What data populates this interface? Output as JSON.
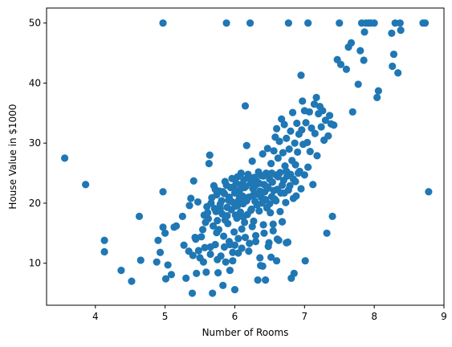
{
  "chart_data": {
    "type": "scatter",
    "title": "",
    "xlabel": "Number of Rooms",
    "ylabel": "House Value in $1000",
    "xlim": [
      3.3,
      9.0
    ],
    "ylim": [
      3.0,
      52.5
    ],
    "x_ticks": [
      4,
      5,
      6,
      7,
      8,
      9
    ],
    "y_ticks": [
      10,
      20,
      30,
      40,
      50
    ],
    "grid": false,
    "color": "#1f77b4",
    "series": [
      {
        "points": [
          [
            3.56,
            27.5
          ],
          [
            3.86,
            23.1
          ],
          [
            4.13,
            13.8
          ],
          [
            4.13,
            11.9
          ],
          [
            4.37,
            8.8
          ],
          [
            4.52,
            7.0
          ],
          [
            4.63,
            17.8
          ],
          [
            4.65,
            10.5
          ],
          [
            4.88,
            10.2
          ],
          [
            4.9,
            13.8
          ],
          [
            4.93,
            11.8
          ],
          [
            4.97,
            16.0
          ],
          [
            4.97,
            21.9
          ],
          [
            4.97,
            50.0
          ],
          [
            5.0,
            15.0
          ],
          [
            5.01,
            7.4
          ],
          [
            5.04,
            9.7
          ],
          [
            5.09,
            8.1
          ],
          [
            5.13,
            16.0
          ],
          [
            5.16,
            16.2
          ],
          [
            5.25,
            17.8
          ],
          [
            5.27,
            13.0
          ],
          [
            5.3,
            7.5
          ],
          [
            5.34,
            12.0
          ],
          [
            5.35,
            19.6
          ],
          [
            5.37,
            20.8
          ],
          [
            5.39,
            5.0
          ],
          [
            5.41,
            23.7
          ],
          [
            5.43,
            14.3
          ],
          [
            5.45,
            8.3
          ],
          [
            5.47,
            20.2
          ],
          [
            5.5,
            10.9
          ],
          [
            5.52,
            14.4
          ],
          [
            5.54,
            15.6
          ],
          [
            5.56,
            18.0
          ],
          [
            5.57,
            12.6
          ],
          [
            5.59,
            8.5
          ],
          [
            5.6,
            19.4
          ],
          [
            5.62,
            17.4
          ],
          [
            5.63,
            26.6
          ],
          [
            5.64,
            28.0
          ],
          [
            5.65,
            12.7
          ],
          [
            5.66,
            20.0
          ],
          [
            5.68,
            5.0
          ],
          [
            5.69,
            16.2
          ],
          [
            5.7,
            22.9
          ],
          [
            5.71,
            19.1
          ],
          [
            5.72,
            13.1
          ],
          [
            5.73,
            18.6
          ],
          [
            5.74,
            21.4
          ],
          [
            5.75,
            17.1
          ],
          [
            5.76,
            8.4
          ],
          [
            5.77,
            15.6
          ],
          [
            5.78,
            22.0
          ],
          [
            5.79,
            19.8
          ],
          [
            5.8,
            11.2
          ],
          [
            5.81,
            20.4
          ],
          [
            5.82,
            18.2
          ],
          [
            5.83,
            6.3
          ],
          [
            5.84,
            14.5
          ],
          [
            5.85,
            21.6
          ],
          [
            5.86,
            17.2
          ],
          [
            5.87,
            10.2
          ],
          [
            5.88,
            23.0
          ],
          [
            5.88,
            50.0
          ],
          [
            5.89,
            19.3
          ],
          [
            5.9,
            16.6
          ],
          [
            5.91,
            20.5
          ],
          [
            5.92,
            13.6
          ],
          [
            5.93,
            8.8
          ],
          [
            5.94,
            22.6
          ],
          [
            5.95,
            18.9
          ],
          [
            5.96,
            24.1
          ],
          [
            5.97,
            11.8
          ],
          [
            5.98,
            20.1
          ],
          [
            5.99,
            15.2
          ],
          [
            6.0,
            21.7
          ],
          [
            6.0,
            5.6
          ],
          [
            6.01,
            19.5
          ],
          [
            6.02,
            23.3
          ],
          [
            6.03,
            17.5
          ],
          [
            6.04,
            24.4
          ],
          [
            6.05,
            14.1
          ],
          [
            6.06,
            20.6
          ],
          [
            6.07,
            22.2
          ],
          [
            6.08,
            18.5
          ],
          [
            6.09,
            25.0
          ],
          [
            6.1,
            12.5
          ],
          [
            6.11,
            21.2
          ],
          [
            6.12,
            19.9
          ],
          [
            6.13,
            23.9
          ],
          [
            6.14,
            16.8
          ],
          [
            6.15,
            20.9
          ],
          [
            6.15,
            36.2
          ],
          [
            6.16,
            22.8
          ],
          [
            6.17,
            29.6
          ],
          [
            6.18,
            18.1
          ],
          [
            6.19,
            24.8
          ],
          [
            6.2,
            21.0
          ],
          [
            6.21,
            13.3
          ],
          [
            6.22,
            50.0
          ],
          [
            6.23,
            23.4
          ],
          [
            6.24,
            19.0
          ],
          [
            6.25,
            27.0
          ],
          [
            6.26,
            22.4
          ],
          [
            6.27,
            17.0
          ],
          [
            6.28,
            24.3
          ],
          [
            6.29,
            20.3
          ],
          [
            6.3,
            14.6
          ],
          [
            6.31,
            23.7
          ],
          [
            6.32,
            21.5
          ],
          [
            6.33,
            7.2
          ],
          [
            6.34,
            25.2
          ],
          [
            6.35,
            18.7
          ],
          [
            6.36,
            22.0
          ],
          [
            6.37,
            9.6
          ],
          [
            6.38,
            24.6
          ],
          [
            6.39,
            20.0
          ],
          [
            6.4,
            28.2
          ],
          [
            6.41,
            16.4
          ],
          [
            6.42,
            23.1
          ],
          [
            6.43,
            21.9
          ],
          [
            6.44,
            7.2
          ],
          [
            6.45,
            25.0
          ],
          [
            6.46,
            19.2
          ],
          [
            6.47,
            29.1
          ],
          [
            6.48,
            22.5
          ],
          [
            6.49,
            13.4
          ],
          [
            6.5,
            24.0
          ],
          [
            6.51,
            18.4
          ],
          [
            6.52,
            26.6
          ],
          [
            6.53,
            21.1
          ],
          [
            6.54,
            23.5
          ],
          [
            6.55,
            15.4
          ],
          [
            6.56,
            28.7
          ],
          [
            6.57,
            20.7
          ],
          [
            6.58,
            31.0
          ],
          [
            6.59,
            24.7
          ],
          [
            6.6,
            32.4
          ],
          [
            6.61,
            22.3
          ],
          [
            6.62,
            27.5
          ],
          [
            6.63,
            13.8
          ],
          [
            6.64,
            30.3
          ],
          [
            6.65,
            25.1
          ],
          [
            6.66,
            21.7
          ],
          [
            6.67,
            34.0
          ],
          [
            6.68,
            16.9
          ],
          [
            6.69,
            28.4
          ],
          [
            6.7,
            23.8
          ],
          [
            6.71,
            33.1
          ],
          [
            6.72,
            26.2
          ],
          [
            6.73,
            20.1
          ],
          [
            6.74,
            30.8
          ],
          [
            6.75,
            24.5
          ],
          [
            6.76,
            13.5
          ],
          [
            6.77,
            50.0
          ],
          [
            6.78,
            29.0
          ],
          [
            6.79,
            22.9
          ],
          [
            6.8,
            32.0
          ],
          [
            6.81,
            7.5
          ],
          [
            6.82,
            27.1
          ],
          [
            6.83,
            35.1
          ],
          [
            6.84,
            24.0
          ],
          [
            6.85,
            8.3
          ],
          [
            6.86,
            30.0
          ],
          [
            6.87,
            26.4
          ],
          [
            6.88,
            21.2
          ],
          [
            6.89,
            33.3
          ],
          [
            6.9,
            28.5
          ],
          [
            6.92,
            31.5
          ],
          [
            6.93,
            25.3
          ],
          [
            6.95,
            41.3
          ],
          [
            6.96,
            32.2
          ],
          [
            6.97,
            37.0
          ],
          [
            6.98,
            29.8
          ],
          [
            7.0,
            35.4
          ],
          [
            7.01,
            10.4
          ],
          [
            7.02,
            33.4
          ],
          [
            7.04,
            30.1
          ],
          [
            7.05,
            50.0
          ],
          [
            7.07,
            35.2
          ],
          [
            7.08,
            28.6
          ],
          [
            7.1,
            32.5
          ],
          [
            7.12,
            23.1
          ],
          [
            7.14,
            36.5
          ],
          [
            7.15,
            31.6
          ],
          [
            7.17,
            37.6
          ],
          [
            7.18,
            27.9
          ],
          [
            7.2,
            34.9
          ],
          [
            7.22,
            36.1
          ],
          [
            7.24,
            32.7
          ],
          [
            7.26,
            35.4
          ],
          [
            7.28,
            30.5
          ],
          [
            7.3,
            33.8
          ],
          [
            7.32,
            15.0
          ],
          [
            7.34,
            31.2
          ],
          [
            7.36,
            34.6
          ],
          [
            7.38,
            33.2
          ],
          [
            7.4,
            17.8
          ],
          [
            7.42,
            33.0
          ],
          [
            7.47,
            43.9
          ],
          [
            7.5,
            50.0
          ],
          [
            7.52,
            43.1
          ],
          [
            7.6,
            42.3
          ],
          [
            7.63,
            46.0
          ],
          [
            7.67,
            46.7
          ],
          [
            7.69,
            35.2
          ],
          [
            7.77,
            39.8
          ],
          [
            7.8,
            45.4
          ],
          [
            7.82,
            50.0
          ],
          [
            7.85,
            43.8
          ],
          [
            7.86,
            48.5
          ],
          [
            7.88,
            50.0
          ],
          [
            7.92,
            50.0
          ],
          [
            7.95,
            50.0
          ],
          [
            8.0,
            50.0
          ],
          [
            8.04,
            37.6
          ],
          [
            8.06,
            38.7
          ],
          [
            8.25,
            48.3
          ],
          [
            8.26,
            42.8
          ],
          [
            8.28,
            44.8
          ],
          [
            8.3,
            50.0
          ],
          [
            8.34,
            41.7
          ],
          [
            8.37,
            50.0
          ],
          [
            8.38,
            48.8
          ],
          [
            8.7,
            50.0
          ],
          [
            8.73,
            50.0
          ],
          [
            8.78,
            21.9
          ],
          [
            5.44,
            14.0
          ],
          [
            5.48,
            12.1
          ],
          [
            5.58,
            16.8
          ],
          [
            5.61,
            18.4
          ],
          [
            5.67,
            20.9
          ],
          [
            5.72,
            22.3
          ],
          [
            5.74,
            15.1
          ],
          [
            5.79,
            19.0
          ],
          [
            5.83,
            21.9
          ],
          [
            5.86,
            23.6
          ],
          [
            5.89,
            17.9
          ],
          [
            5.92,
            21.0
          ],
          [
            5.95,
            20.3
          ],
          [
            5.98,
            22.7
          ],
          [
            6.01,
            18.0
          ],
          [
            6.04,
            19.6
          ],
          [
            6.06,
            21.4
          ],
          [
            6.09,
            23.1
          ],
          [
            6.12,
            17.7
          ],
          [
            6.14,
            22.6
          ],
          [
            6.17,
            20.4
          ],
          [
            6.2,
            24.2
          ],
          [
            6.23,
            18.8
          ],
          [
            6.26,
            21.3
          ],
          [
            6.29,
            22.9
          ],
          [
            6.32,
            19.7
          ],
          [
            6.35,
            23.3
          ],
          [
            6.38,
            21.0
          ],
          [
            6.41,
            24.5
          ],
          [
            6.44,
            20.6
          ],
          [
            6.47,
            22.7
          ],
          [
            6.5,
            19.9
          ],
          [
            6.53,
            25.0
          ],
          [
            6.56,
            22.1
          ],
          [
            6.59,
            20.4
          ],
          [
            6.62,
            24.4
          ],
          [
            6.65,
            18.6
          ],
          [
            6.68,
            23.0
          ],
          [
            6.71,
            21.7
          ],
          [
            6.74,
            25.3
          ],
          [
            6.77,
            22.2
          ],
          [
            6.8,
            24.8
          ],
          [
            6.84,
            20.8
          ],
          [
            6.87,
            23.6
          ],
          [
            6.91,
            25.0
          ],
          [
            6.95,
            22.4
          ],
          [
            7.0,
            24.7
          ],
          [
            7.05,
            26.0
          ],
          [
            6.0,
            13.0
          ],
          [
            6.05,
            11.7
          ],
          [
            6.1,
            15.7
          ],
          [
            6.15,
            14.3
          ],
          [
            6.2,
            12.0
          ],
          [
            6.25,
            16.1
          ],
          [
            6.3,
            13.6
          ],
          [
            6.36,
            10.9
          ],
          [
            6.42,
            15.0
          ],
          [
            6.48,
            12.8
          ],
          [
            6.55,
            16.5
          ],
          [
            6.61,
            14.0
          ],
          [
            6.68,
            16.9
          ],
          [
            6.74,
            13.4
          ],
          [
            5.55,
            10.2
          ],
          [
            5.65,
            11.5
          ],
          [
            5.75,
            10.6
          ],
          [
            5.85,
            12.7
          ],
          [
            5.93,
            13.1
          ],
          [
            5.97,
            10.4
          ],
          [
            6.4,
            9.5
          ],
          [
            6.52,
            11.0
          ],
          [
            6.6,
            10.4
          ],
          [
            5.4,
            11.3
          ]
        ]
      }
    ]
  }
}
